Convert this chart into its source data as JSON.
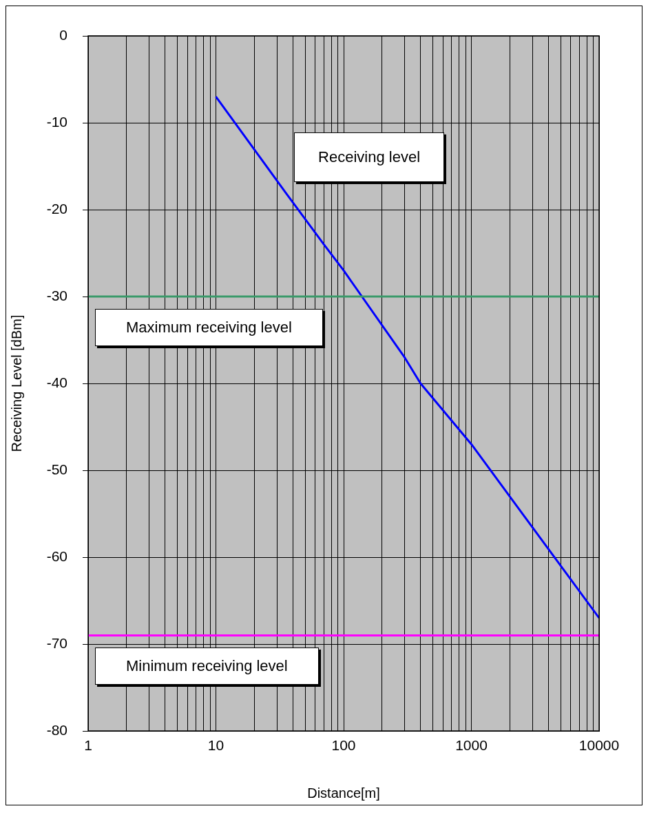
{
  "chart_data": {
    "type": "line",
    "xlabel": "Distance[m]",
    "ylabel": "Receiving Level [dBm]",
    "x": [
      10,
      35,
      70,
      100,
      300,
      400,
      1000,
      10000
    ],
    "series": [
      {
        "color": "#0000ff",
        "values": [
          -7,
          -18,
          -24,
          -27,
          -37,
          -40,
          -47,
          -67
        ]
      }
    ],
    "annotations": [
      "Receiving level"
    ],
    "log": "x",
    "xlim": [
      1,
      10000
    ],
    "xticks": [
      1,
      10,
      100,
      1000,
      10000
    ],
    "ylim": [
      -80,
      0
    ],
    "yticks": [
      -80,
      -70,
      -60,
      -50,
      -40,
      -30,
      -20,
      -10,
      0
    ],
    "grid": true,
    "legend": false,
    "marker": "none",
    "line_style": "solid",
    "ref_lines": [
      {
        "axis": "y",
        "value": -30,
        "label": "Maximum receiving level",
        "color": "#3a9a6a"
      },
      {
        "axis": "y",
        "value": -69,
        "label": "Minimum receiving level",
        "color": "#ff00ff"
      }
    ]
  }
}
